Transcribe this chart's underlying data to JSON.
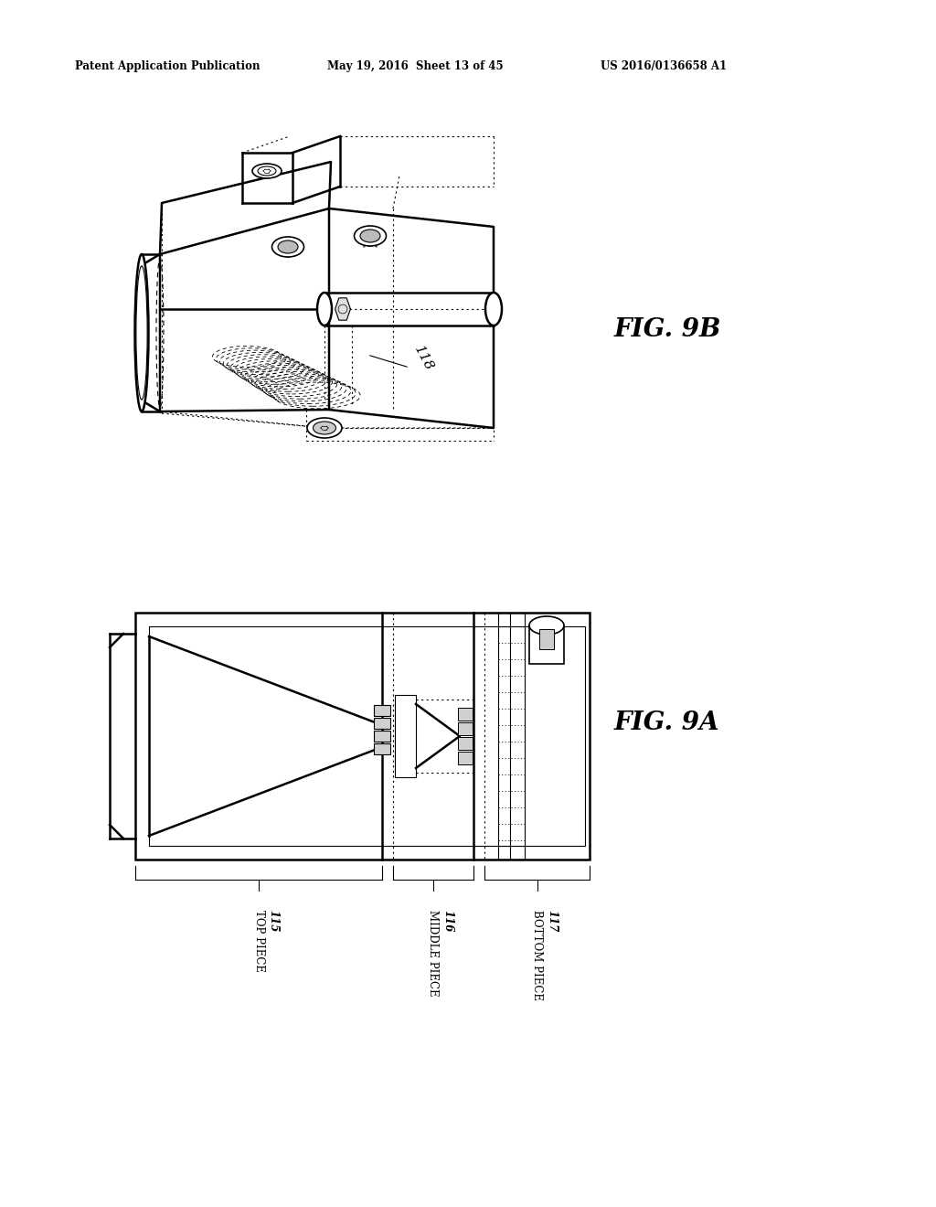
{
  "bg_color": "#ffffff",
  "header_text1": "Patent Application Publication",
  "header_text2": "May 19, 2016  Sheet 13 of 45",
  "header_text3": "US 2016/0136658 A1",
  "fig9b_label": "FIG. 9B",
  "fig9a_label": "FIG. 9A",
  "label_118": "118",
  "label_115": "115",
  "label_116": "116",
  "label_117": "117",
  "label_top_piece": "TOP PIECE",
  "label_middle_piece": "MIDDLE PIECE",
  "label_bottom_piece": "BOTTOM PIECE"
}
